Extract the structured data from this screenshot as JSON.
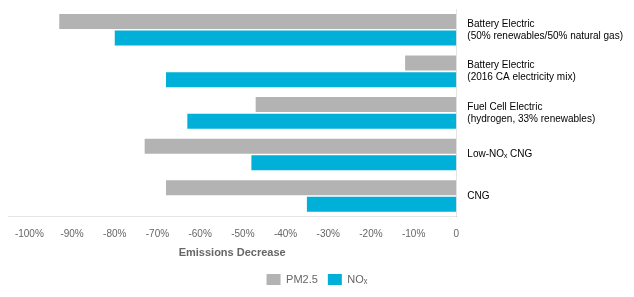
{
  "chart_data": {
    "type": "bar",
    "orientation": "horizontal",
    "categories": [
      "Battery Electric\n(50% renewables/50% natural gas)",
      "Battery Electric\n(2016 CA electricity mix)",
      "Fuel Cell Electric\n(hydrogen, 33% renewables)",
      "Low-NOₓ CNG",
      "CNG"
    ],
    "series": [
      {
        "name": "PM2.5",
        "color": "#b3b3b3",
        "values": [
          -93,
          -12,
          -47,
          -73,
          -68
        ]
      },
      {
        "name": "NOₓ",
        "color": "#00b0d8",
        "values": [
          -80,
          -68,
          -63,
          -48,
          -35
        ]
      }
    ],
    "xlabel": "Emissions Decrease",
    "xlim": [
      -105,
      0
    ],
    "xticks": [
      {
        "value": -100,
        "label": "-100%"
      },
      {
        "value": -90,
        "label": "-90%"
      },
      {
        "value": -80,
        "label": "-80%"
      },
      {
        "value": -70,
        "label": "-70%"
      },
      {
        "value": -60,
        "label": "-60%"
      },
      {
        "value": -50,
        "label": "-50%"
      },
      {
        "value": -40,
        "label": "-40%"
      },
      {
        "value": -30,
        "label": "-30%"
      },
      {
        "value": -20,
        "label": "-20%"
      },
      {
        "value": -10,
        "label": "-10%"
      },
      0
    ],
    "grid": false,
    "legend": "bottom"
  }
}
